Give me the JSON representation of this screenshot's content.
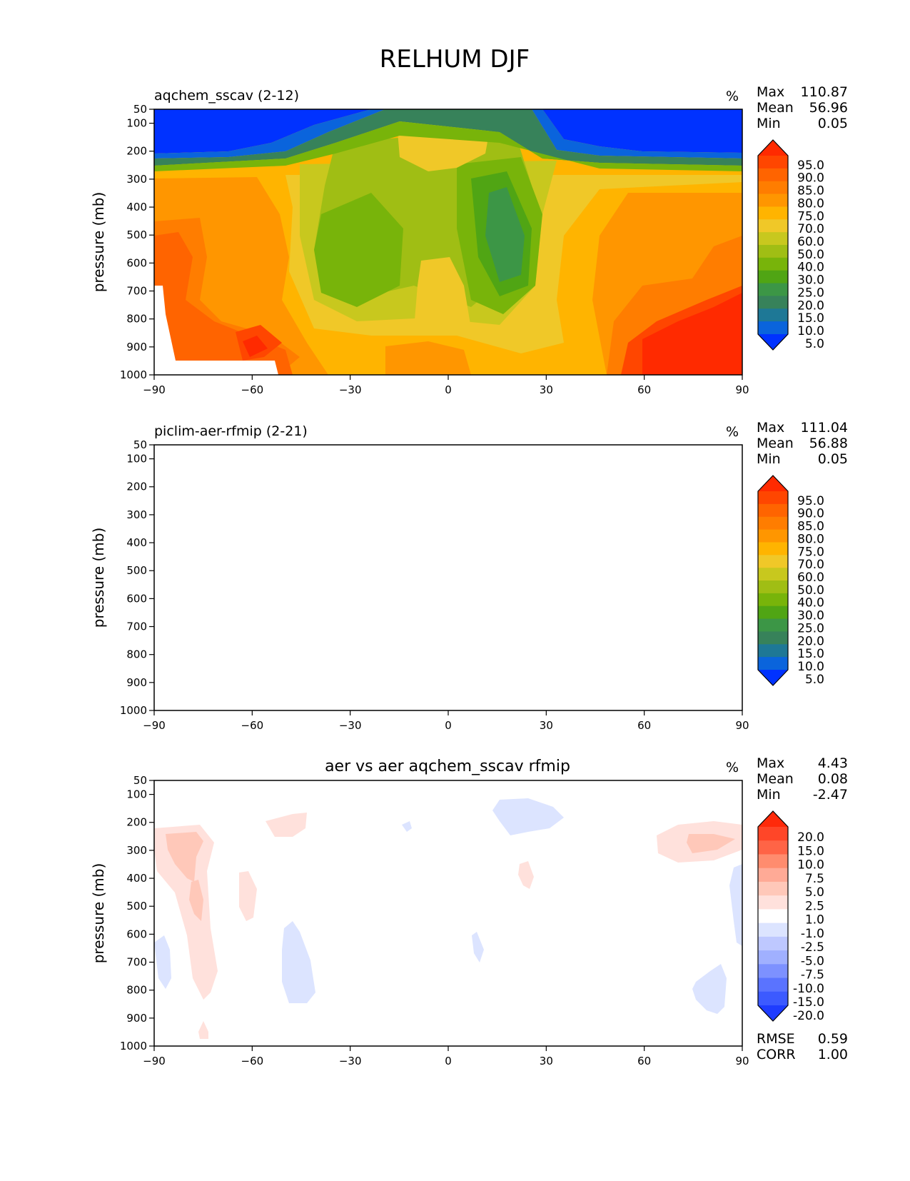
{
  "figure": {
    "title": "RELHUM DJF"
  },
  "chart_data": [
    {
      "type": "heatmap",
      "title": "aqchem_sscav (2-12)",
      "units": "%",
      "ylabel": "pressure (mb)",
      "xlabel": "",
      "x_ticks": [
        "−90",
        "−60",
        "−30",
        "0",
        "30",
        "60",
        "90"
      ],
      "y_ticks": [
        "50",
        "100",
        "200",
        "300",
        "400",
        "500",
        "600",
        "700",
        "800",
        "900",
        "1000"
      ],
      "xlim": [
        -90,
        90
      ],
      "ylim": [
        50,
        1000
      ],
      "stats": {
        "max_label": "Max",
        "max": "110.87",
        "mean_label": "Mean",
        "mean": "56.96",
        "min_label": "Min",
        "min": "0.05"
      },
      "colorbar": {
        "levels": [
          "95.0",
          "90.0",
          "85.0",
          "80.0",
          "75.0",
          "70.0",
          "60.0",
          "50.0",
          "40.0",
          "30.0",
          "25.0",
          "20.0",
          "15.0",
          "10.0",
          "5.0"
        ],
        "colors": [
          "#ff2a00",
          "#ff4600",
          "#ff6400",
          "#ff7d00",
          "#ff9600",
          "#ffb400",
          "#f0c828",
          "#c8c81e",
          "#a0be14",
          "#78b40a",
          "#50a514",
          "#3c9646",
          "#37825a",
          "#1e7896",
          "#0a64dc",
          "#0032ff"
        ]
      }
    },
    {
      "type": "heatmap",
      "title": "piclim-aer-rfmip (2-21)",
      "units": "%",
      "ylabel": "pressure (mb)",
      "xlabel": "",
      "x_ticks": [
        "−90",
        "−60",
        "−30",
        "0",
        "30",
        "60",
        "90"
      ],
      "y_ticks": [
        "50",
        "100",
        "200",
        "300",
        "400",
        "500",
        "600",
        "700",
        "800",
        "900",
        "1000"
      ],
      "xlim": [
        -90,
        90
      ],
      "ylim": [
        50,
        1000
      ],
      "stats": {
        "max_label": "Max",
        "max": "111.04",
        "mean_label": "Mean",
        "mean": "56.88",
        "min_label": "Min",
        "min": "0.05"
      },
      "colorbar": {
        "levels": [
          "95.0",
          "90.0",
          "85.0",
          "80.0",
          "75.0",
          "70.0",
          "60.0",
          "50.0",
          "40.0",
          "30.0",
          "25.0",
          "20.0",
          "15.0",
          "10.0",
          "5.0"
        ],
        "colors": [
          "#ff2a00",
          "#ff4600",
          "#ff6400",
          "#ff7d00",
          "#ff9600",
          "#ffb400",
          "#f0c828",
          "#c8c81e",
          "#a0be14",
          "#78b40a",
          "#50a514",
          "#3c9646",
          "#37825a",
          "#1e7896",
          "#0a64dc",
          "#0032ff"
        ]
      }
    },
    {
      "type": "heatmap",
      "title": "aer vs aer aqchem_sscav rfmip",
      "units": "%",
      "ylabel": "pressure (mb)",
      "xlabel": "",
      "x_ticks": [
        "−90",
        "−60",
        "−30",
        "0",
        "30",
        "60",
        "90"
      ],
      "y_ticks": [
        "50",
        "100",
        "200",
        "300",
        "400",
        "500",
        "600",
        "700",
        "800",
        "900",
        "1000"
      ],
      "xlim": [
        -90,
        90
      ],
      "ylim": [
        50,
        1000
      ],
      "stats": {
        "max_label": "Max",
        "max": "4.43",
        "mean_label": "Mean",
        "mean": "0.08",
        "min_label": "Min",
        "min": "-2.47"
      },
      "colorbar": {
        "levels": [
          "20.0",
          "15.0",
          "10.0",
          "7.5",
          "5.0",
          "2.5",
          "1.0",
          "-1.0",
          "-2.5",
          "-5.0",
          "-7.5",
          "-10.0",
          "-15.0",
          "-20.0"
        ],
        "colors": [
          "#ff2a0a",
          "#ff4628",
          "#ff6446",
          "#ff8c6e",
          "#ffaa96",
          "#ffc8b9",
          "#ffe1dc",
          "#ffffff",
          "#dce4ff",
          "#bec8ff",
          "#a0b0ff",
          "#7d91ff",
          "#5a73ff",
          "#3c5aff",
          "#1e3cff"
        ]
      },
      "extra_stats": {
        "rmse_label": "RMSE",
        "rmse": "0.59",
        "corr_label": "CORR",
        "corr": "1.00"
      }
    }
  ]
}
